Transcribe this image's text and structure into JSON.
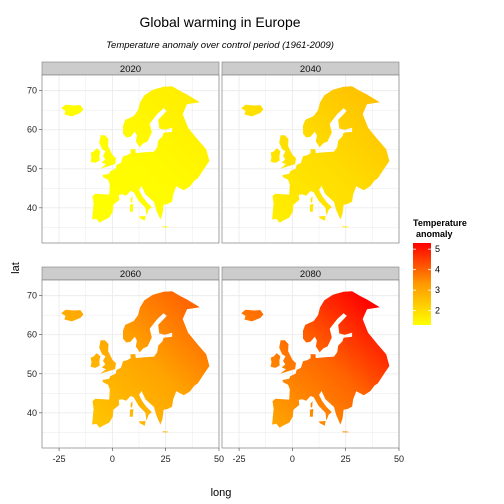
{
  "chart_data": {
    "type": "heatmap",
    "title": "Global warming in Europe",
    "subtitle": "Temperature anomaly over control period (1961-2009)",
    "xlabel": "long",
    "ylabel": "lat",
    "xlim": [
      -33,
      50
    ],
    "ylim": [
      31,
      74
    ],
    "x_ticks": [
      -25,
      0,
      25,
      50
    ],
    "y_ticks": [
      40,
      50,
      60,
      70
    ],
    "grid": true,
    "legend": {
      "title": "Temperature anomaly",
      "title_lines": [
        "Temperature",
        "anomaly"
      ],
      "placement": "right",
      "ticks": [
        2,
        3,
        4,
        5
      ],
      "range": [
        1.3,
        5.3
      ],
      "low_color": "#FFFF00",
      "high_color": "#FF0000"
    },
    "panels": [
      {
        "label": "2020",
        "anomaly_mean": 1.4,
        "anomaly_gradient": 0.1
      },
      {
        "label": "2040",
        "anomaly_mean": 2.0,
        "anomaly_gradient": 0.2
      },
      {
        "label": "2060",
        "anomaly_mean": 3.1,
        "anomaly_gradient": 0.35
      },
      {
        "label": "2080",
        "anomaly_mean": 4.0,
        "anomaly_gradient": 0.5
      }
    ],
    "colors": {
      "strip_fill": "#CCCCCC",
      "panel_border": "#7F7F7F",
      "gridline": "#EBEBEB"
    }
  }
}
